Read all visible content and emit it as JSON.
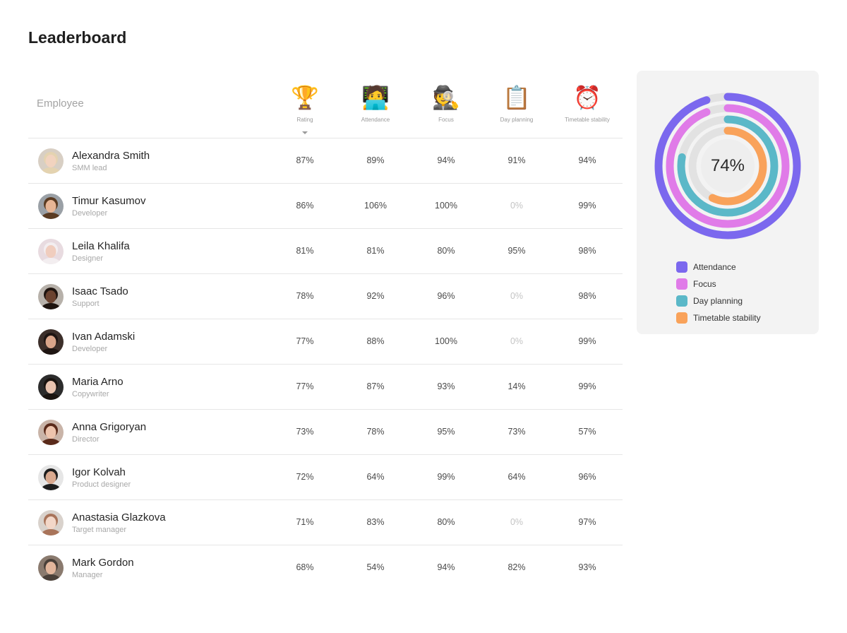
{
  "page": {
    "title": "Leaderboard"
  },
  "table": {
    "employee_header": "Employee",
    "columns": [
      {
        "key": "rating",
        "label": "Rating",
        "emoji": "🏆",
        "icon": "trophy-icon",
        "sorted": true
      },
      {
        "key": "attendance",
        "label": "Attendance",
        "emoji": "🧑‍💻",
        "icon": "technologist-icon"
      },
      {
        "key": "focus",
        "label": "Focus",
        "emoji": "🕵️",
        "icon": "detective-icon"
      },
      {
        "key": "day_planning",
        "label": "Day planning",
        "emoji": "📋",
        "icon": "clipboard-icon"
      },
      {
        "key": "timetable_stability",
        "label": "Timetable stability",
        "emoji": "⏰",
        "icon": "alarm-clock-icon"
      }
    ],
    "rows": [
      {
        "name": "Alexandra Smith",
        "role": "SMM lead",
        "values": [
          "87%",
          "89%",
          "94%",
          "91%",
          "94%"
        ]
      },
      {
        "name": "Timur Kasumov",
        "role": "Developer",
        "values": [
          "86%",
          "106%",
          "100%",
          "0%",
          "99%"
        ]
      },
      {
        "name": "Leila Khalifa",
        "role": "Designer",
        "values": [
          "81%",
          "81%",
          "80%",
          "95%",
          "98%"
        ]
      },
      {
        "name": "Isaac Tsado",
        "role": "Support",
        "values": [
          "78%",
          "92%",
          "96%",
          "0%",
          "98%"
        ]
      },
      {
        "name": "Ivan Adamski",
        "role": "Developer",
        "values": [
          "77%",
          "88%",
          "100%",
          "0%",
          "99%"
        ]
      },
      {
        "name": "Maria Arno",
        "role": "Copywriter",
        "values": [
          "77%",
          "87%",
          "93%",
          "14%",
          "99%"
        ]
      },
      {
        "name": "Anna Grigoryan",
        "role": "Director",
        "values": [
          "73%",
          "78%",
          "95%",
          "73%",
          "57%"
        ]
      },
      {
        "name": "Igor Kolvah",
        "role": "Product designer",
        "values": [
          "72%",
          "64%",
          "99%",
          "64%",
          "96%"
        ]
      },
      {
        "name": "Anastasia Glazkova",
        "role": "Target manager",
        "values": [
          "71%",
          "83%",
          "80%",
          "0%",
          "97%"
        ]
      },
      {
        "name": "Mark Gordon",
        "role": "Manager",
        "values": [
          "68%",
          "54%",
          "94%",
          "82%",
          "93%"
        ]
      }
    ]
  },
  "chart_data": {
    "type": "pie",
    "center_value": "74%",
    "series": [
      {
        "name": "Attendance",
        "value": 0.95,
        "color": "#7b68ee"
      },
      {
        "name": "Focus",
        "value": 0.94,
        "color": "#e07be8"
      },
      {
        "name": "Day planning",
        "value": 0.78,
        "color": "#5bb8c8"
      },
      {
        "name": "Timetable stability",
        "value": 0.57,
        "color": "#f9a25a"
      }
    ],
    "track_color": "#e2e2e2",
    "legend_position": "bottom"
  }
}
